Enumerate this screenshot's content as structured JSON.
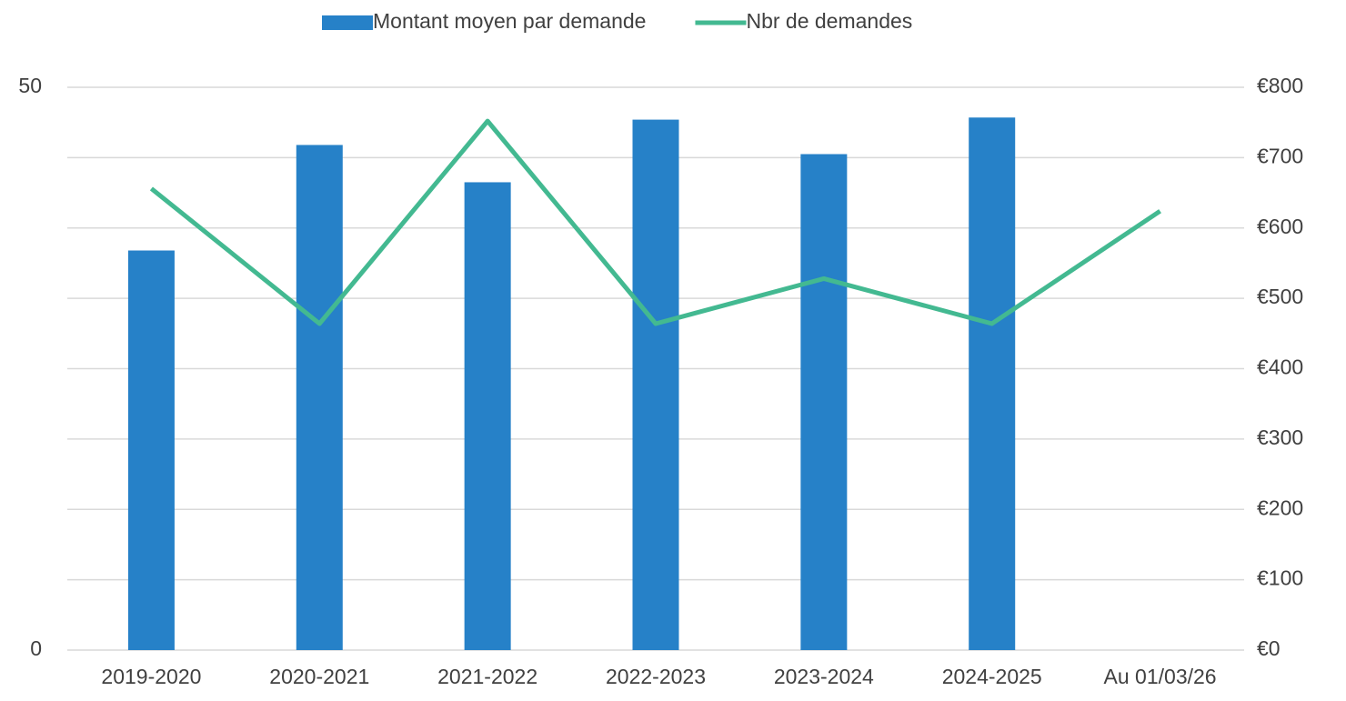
{
  "chart_data": {
    "type": "bar",
    "categories": [
      "2019-2020",
      "2020-2021",
      "2021-2022",
      "2022-2023",
      "2023-2024",
      "2024-2025",
      "Au 01/03/26"
    ],
    "series": [
      {
        "name": "Montant moyen par demande",
        "type": "bar",
        "axis": "y2",
        "color": "#2681c8",
        "values": [
          568,
          718,
          665,
          754,
          705,
          757,
          null
        ]
      },
      {
        "name": "Nbr de demandes",
        "type": "line",
        "axis": "y",
        "color": "#43b991",
        "values": [
          41,
          29,
          47,
          29,
          33,
          29,
          39
        ]
      }
    ],
    "ylim": [
      0,
      50
    ],
    "yticks": [
      0,
      50
    ],
    "y2lim": [
      0,
      800
    ],
    "y2ticks": [
      {
        "value": 0,
        "label": "€0"
      },
      {
        "value": 100,
        "label": "€100"
      },
      {
        "value": 200,
        "label": "€200"
      },
      {
        "value": 300,
        "label": "€300"
      },
      {
        "value": 400,
        "label": "€400"
      },
      {
        "value": 500,
        "label": "€500"
      },
      {
        "value": 600,
        "label": "€600"
      },
      {
        "value": 700,
        "label": "€700"
      },
      {
        "value": 800,
        "label": "€800"
      }
    ],
    "grid": true,
    "legend": "top"
  }
}
